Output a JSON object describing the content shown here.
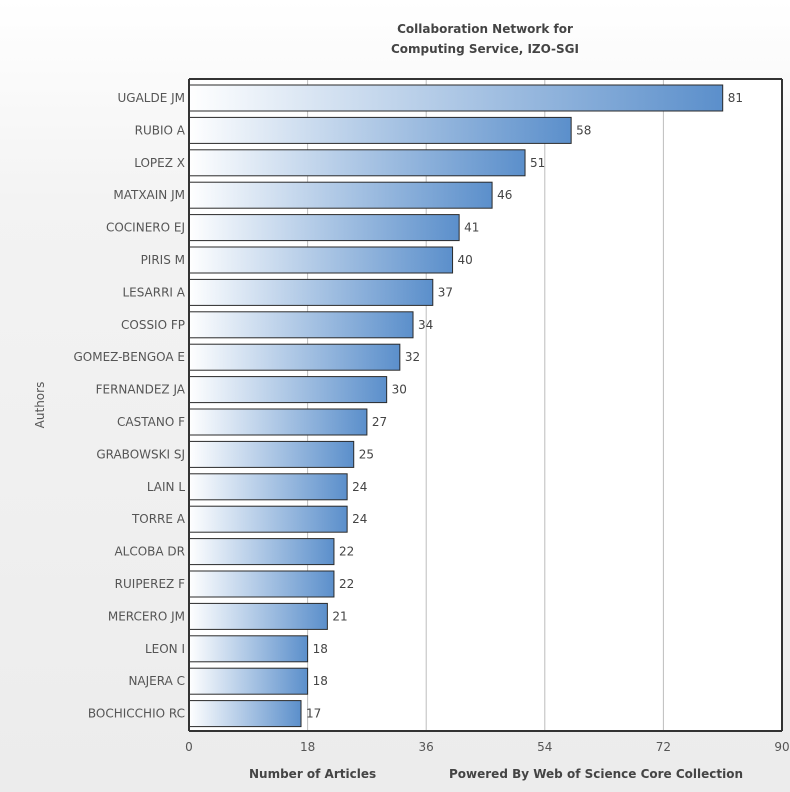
{
  "chart_data": {
    "type": "bar",
    "orientation": "horizontal",
    "title_line1": "Collaboration Network for",
    "title_line2": "Computing Service, IZO-SGI",
    "xlabel": "Number of Articles",
    "ylabel": "Authors",
    "credit": "Powered By Web of Science Core Collection",
    "xlim": [
      0,
      90
    ],
    "xticks": [
      "0",
      "18",
      "36",
      "54",
      "72",
      "90"
    ],
    "grid": true,
    "categories": [
      "UGALDE JM",
      "RUBIO A",
      "LOPEZ X",
      "MATXAIN JM",
      "COCINERO EJ",
      "PIRIS M",
      "LESARRI A",
      "COSSIO FP",
      "GOMEZ-BENGOA E",
      "FERNANDEZ JA",
      "CASTANO F",
      "GRABOWSKI SJ",
      "LAIN L",
      "TORRE A",
      "ALCOBA DR",
      "RUIPEREZ F",
      "MERCERO JM",
      "LEON I",
      "NAJERA C",
      "BOCHICCHIO RC"
    ],
    "values": [
      81,
      58,
      51,
      46,
      41,
      40,
      37,
      34,
      32,
      30,
      27,
      25,
      24,
      24,
      22,
      22,
      21,
      18,
      18,
      17
    ],
    "colors": {
      "bar_start": "#ffffff",
      "bar_end": "#5b8fcb",
      "bar_stroke": "#2a2a2a",
      "grid": "#bdbdbd",
      "axis": "#333333"
    }
  }
}
